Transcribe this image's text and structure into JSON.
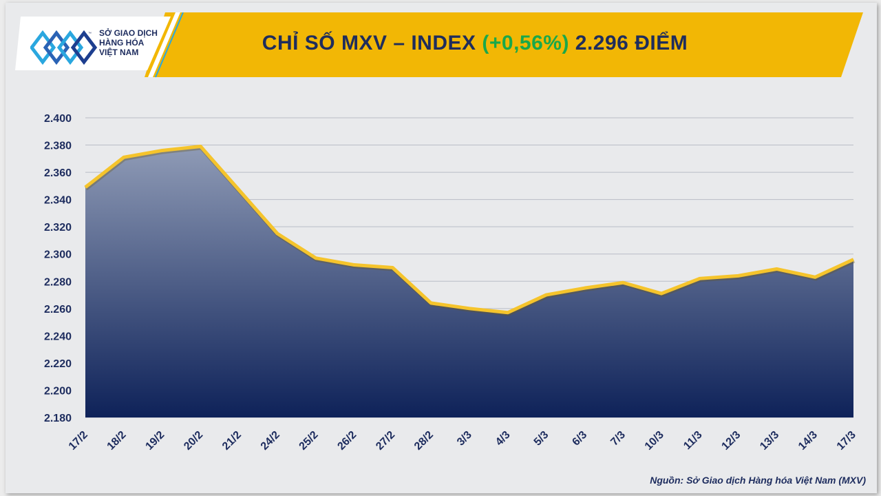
{
  "header": {
    "logo_lines": [
      "SỞ GIAO DỊCH",
      "HÀNG HÓA",
      "VIỆT NAM"
    ],
    "logo_tm": "™",
    "title_prefix": "CHỈ SỐ MXV – INDEX ",
    "title_change": "(+0,56%)",
    "title_suffix": " 2.296 ĐIỂM",
    "colors": {
      "banner": "#f2b705",
      "title": "#1f2d5c",
      "change": "#1aa84a"
    }
  },
  "source": "Nguồn: Sở Giao dịch Hàng hóa Việt Nam (MXV)",
  "chart_data": {
    "type": "area",
    "categories": [
      "17/2",
      "18/2",
      "19/2",
      "20/2",
      "21/2",
      "24/2",
      "25/2",
      "26/2",
      "27/2",
      "28/2",
      "3/3",
      "4/3",
      "5/3",
      "6/3",
      "7/3",
      "10/3",
      "11/3",
      "12/3",
      "13/3",
      "14/3",
      "17/3"
    ],
    "values": [
      2349,
      2371,
      2376,
      2379,
      2347,
      2315,
      2297,
      2292,
      2290,
      2264,
      2260,
      2257,
      2270,
      2275,
      2279,
      2271,
      2282,
      2284,
      2289,
      2283,
      2296
    ],
    "y_tick_values": [
      2180,
      2200,
      2220,
      2240,
      2260,
      2280,
      2300,
      2320,
      2340,
      2360,
      2380,
      2400
    ],
    "y_tick_labels": [
      "2.180",
      "2.200",
      "2.220",
      "2.240",
      "2.260",
      "2.280",
      "2.300",
      "2.320",
      "2.340",
      "2.360",
      "2.380",
      "2.400"
    ],
    "ylim": [
      2180,
      2400
    ],
    "grid": true,
    "colors": {
      "line": "#f5c42c",
      "fill_top": "#8f9bb6",
      "fill_bottom": "#0e2259",
      "axis_text": "#1d2c5e",
      "grid": "#b9bcc6"
    }
  }
}
